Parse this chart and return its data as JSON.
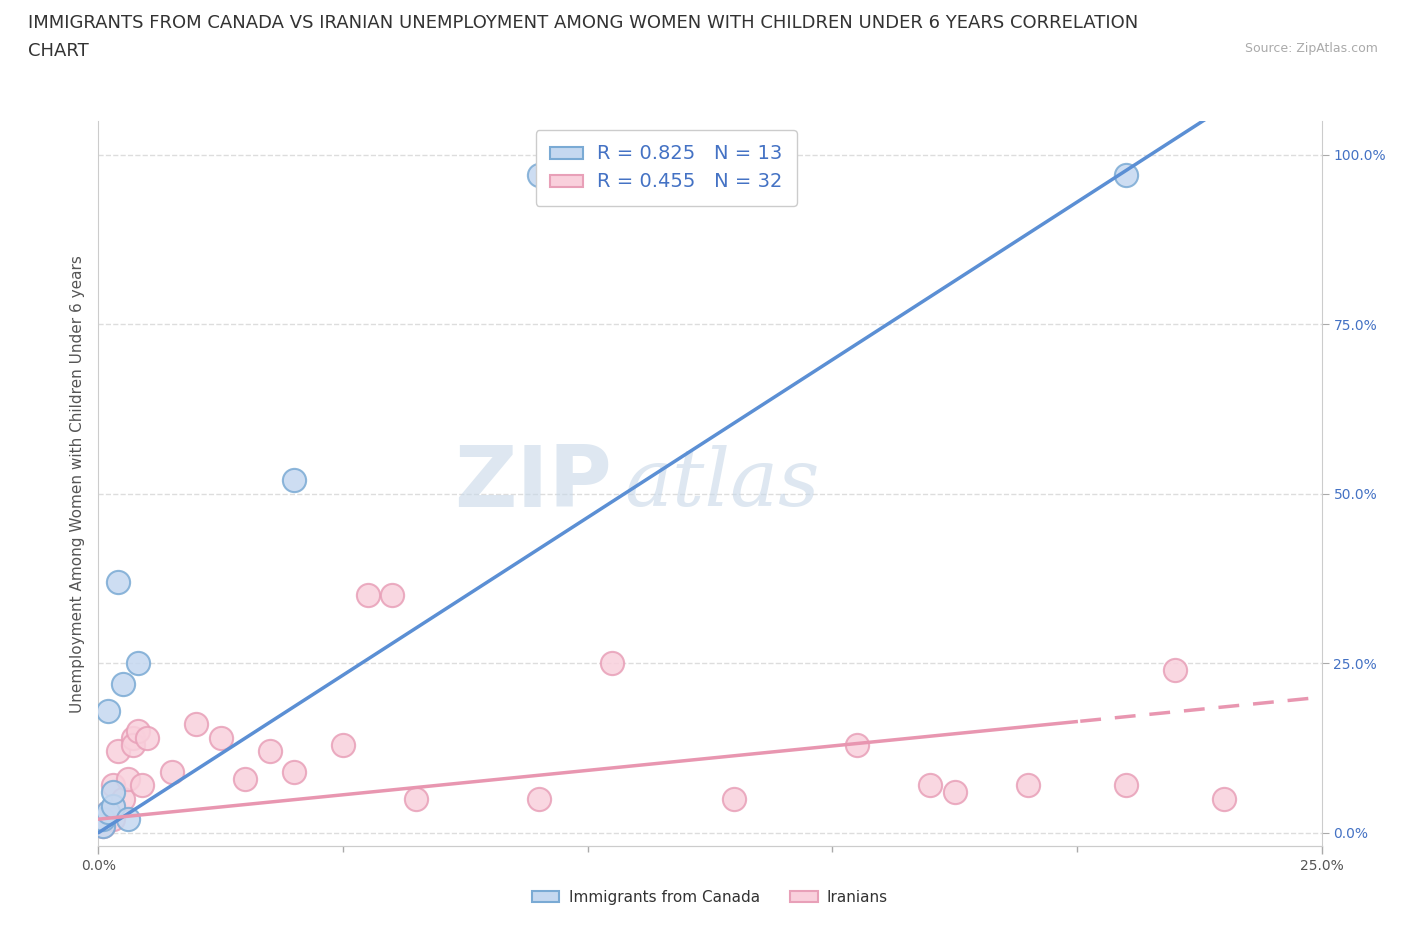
{
  "title_line1": "IMMIGRANTS FROM CANADA VS IRANIAN UNEMPLOYMENT AMONG WOMEN WITH CHILDREN UNDER 6 YEARS CORRELATION",
  "title_line2": "CHART",
  "source": "Source: ZipAtlas.com",
  "ylabel": "Unemployment Among Women with Children Under 6 years",
  "legend_label1": "Immigrants from Canada",
  "legend_label2": "Iranians",
  "r1": 0.825,
  "n1": 13,
  "r2": 0.455,
  "n2": 32,
  "blue_face": "#c5d8f0",
  "blue_edge": "#7aaad4",
  "pink_face": "#f9d0dc",
  "pink_edge": "#e8a0b8",
  "blue_line_color": "#5b8fd4",
  "pink_line_color": "#e896b0",
  "blue_scatter_x": [
    0.001,
    0.001,
    0.002,
    0.002,
    0.003,
    0.003,
    0.004,
    0.005,
    0.006,
    0.008,
    0.04,
    0.09,
    0.21
  ],
  "blue_scatter_y": [
    0.01,
    0.02,
    0.03,
    0.18,
    0.04,
    0.06,
    0.37,
    0.22,
    0.02,
    0.25,
    0.52,
    0.97,
    0.97
  ],
  "pink_scatter_x": [
    0.001,
    0.002,
    0.003,
    0.003,
    0.004,
    0.005,
    0.006,
    0.007,
    0.007,
    0.008,
    0.009,
    0.01,
    0.015,
    0.02,
    0.025,
    0.03,
    0.035,
    0.04,
    0.05,
    0.055,
    0.06,
    0.065,
    0.09,
    0.105,
    0.13,
    0.155,
    0.17,
    0.175,
    0.19,
    0.21,
    0.22,
    0.23
  ],
  "pink_scatter_y": [
    0.01,
    0.03,
    0.07,
    0.02,
    0.12,
    0.05,
    0.08,
    0.14,
    0.13,
    0.15,
    0.07,
    0.14,
    0.09,
    0.16,
    0.14,
    0.08,
    0.12,
    0.09,
    0.13,
    0.35,
    0.35,
    0.05,
    0.05,
    0.25,
    0.05,
    0.13,
    0.07,
    0.06,
    0.07,
    0.07,
    0.24,
    0.05
  ],
  "blue_line_x0": 0.0,
  "blue_line_y0": 0.0,
  "blue_line_x1": 0.215,
  "blue_line_y1": 1.0,
  "pink_line_x0": 0.0,
  "pink_line_y0": 0.02,
  "pink_line_x1": 0.25,
  "pink_line_y1": 0.2,
  "xlim": [
    0.0,
    0.25
  ],
  "ylim": [
    -0.02,
    1.05
  ],
  "xtick_positions": [
    0.0,
    0.25
  ],
  "xticklabels": [
    "0.0%",
    "25.0%"
  ],
  "yticks_right": [
    0.0,
    0.25,
    0.5,
    0.75,
    1.0
  ],
  "yticklabels_right": [
    "0.0%",
    "25.0%",
    "50.0%",
    "75.0%",
    "100.0%"
  ],
  "background_color": "#ffffff",
  "grid_color": "#dddddd",
  "watermark_zip": "ZIP",
  "watermark_atlas": "atlas",
  "watermark_color_zip": "#c8d8e8",
  "watermark_color_atlas": "#c8d8e8",
  "title_fontsize": 13,
  "axis_label_fontsize": 11,
  "tick_fontsize": 10,
  "legend_fontsize": 13
}
